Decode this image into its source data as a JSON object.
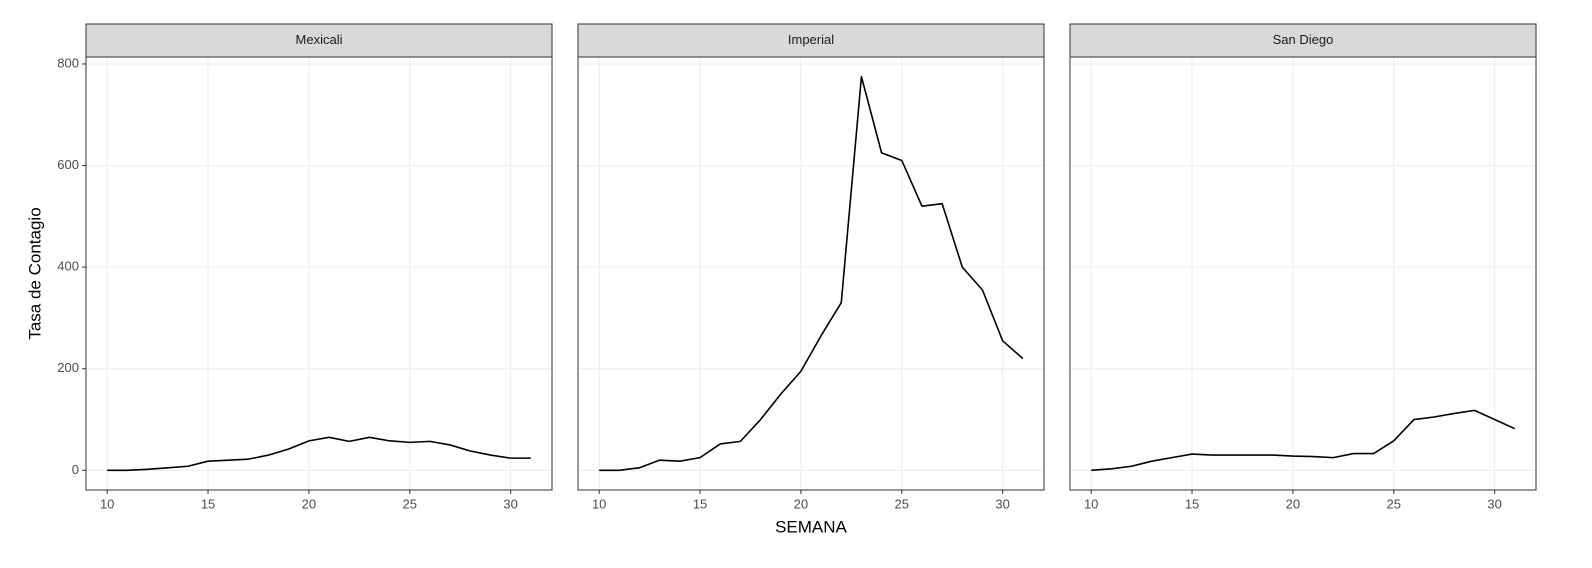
{
  "chart_data": [
    {
      "type": "line",
      "title": "Mexicali",
      "ylabel": "Tasa de Contagio",
      "x": [
        10,
        11,
        12,
        13,
        14,
        15,
        16,
        17,
        18,
        19,
        20,
        21,
        22,
        23,
        24,
        25,
        26,
        27,
        28,
        29,
        30,
        31
      ],
      "values": [
        0,
        0,
        2,
        5,
        8,
        18,
        20,
        22,
        30,
        42,
        58,
        65,
        57,
        65,
        58,
        55,
        57,
        50,
        38,
        30,
        24,
        24
      ],
      "color": "#000000",
      "xlim": [
        8.95,
        32.05
      ],
      "ylim": [
        -38.75,
        813.75
      ],
      "xticks": [
        10,
        15,
        20,
        25,
        30
      ],
      "yticks": [
        0,
        200,
        400,
        600,
        800
      ],
      "grid": true,
      "show_yticks": true
    },
    {
      "type": "line",
      "title": "Imperial",
      "xlabel": "SEMANA",
      "x": [
        10,
        11,
        12,
        13,
        14,
        15,
        16,
        17,
        18,
        19,
        20,
        21,
        22,
        23,
        24,
        25,
        26,
        27,
        28,
        29,
        30,
        31
      ],
      "values": [
        0,
        0,
        5,
        20,
        18,
        25,
        52,
        57,
        100,
        150,
        195,
        265,
        330,
        775,
        625,
        610,
        520,
        525,
        400,
        355,
        255,
        220
      ],
      "color": "#000000",
      "xlim": [
        8.95,
        32.05
      ],
      "ylim": [
        -38.75,
        813.75
      ],
      "xticks": [
        10,
        15,
        20,
        25,
        30
      ],
      "yticks": [
        0,
        200,
        400,
        600,
        800
      ],
      "grid": true,
      "show_yticks": false
    },
    {
      "type": "line",
      "title": "San Diego",
      "x": [
        10,
        11,
        12,
        13,
        14,
        15,
        16,
        17,
        18,
        19,
        20,
        21,
        22,
        23,
        24,
        25,
        26,
        27,
        28,
        29,
        30,
        31
      ],
      "values": [
        0,
        3,
        8,
        18,
        25,
        32,
        30,
        30,
        30,
        30,
        28,
        27,
        25,
        33,
        33,
        58,
        100,
        105,
        112,
        118,
        100,
        82
      ],
      "color": "#000000",
      "xlim": [
        8.95,
        32.05
      ],
      "ylim": [
        -38.75,
        813.75
      ],
      "xticks": [
        10,
        15,
        20,
        25,
        30
      ],
      "yticks": [
        0,
        200,
        400,
        600,
        800
      ],
      "grid": true,
      "show_yticks": false
    }
  ]
}
